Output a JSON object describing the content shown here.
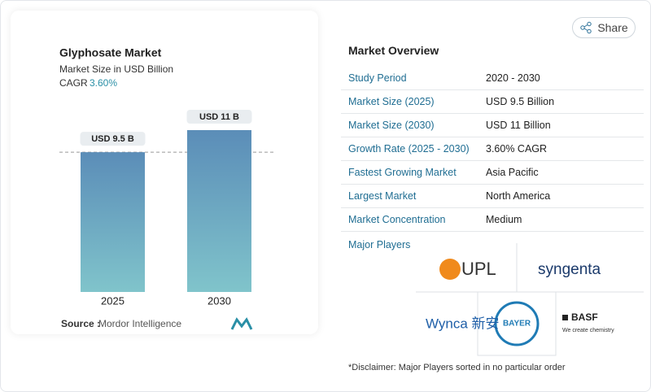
{
  "chart_data": {
    "type": "bar",
    "title": "Glyphosate Market",
    "subtitle": "Market Size in USD Billion",
    "cagr_label": "CAGR",
    "cagr": "3.60%",
    "categories": [
      "2025",
      "2030"
    ],
    "values": [
      9.5,
      11
    ],
    "value_labels": [
      "USD 9.5 B",
      "USD 11 B"
    ],
    "source_label": "Source :",
    "source": "Mordor Intelligence"
  },
  "share": "Share",
  "overview": {
    "title": "Market Overview",
    "rows": [
      [
        "Study Period",
        "2020 - 2030"
      ],
      [
        "Market Size (2025)",
        "USD 9.5 Billion"
      ],
      [
        "Market Size (2030)",
        "USD 11 Billion"
      ],
      [
        "Growth Rate (2025 - 2030)",
        "3.60% CAGR"
      ],
      [
        "Fastest Growing Market",
        "Asia Pacific"
      ],
      [
        "Largest Market",
        "North America"
      ],
      [
        "Market Concentration",
        "Medium"
      ]
    ],
    "players_title": "Major Players",
    "players": [
      "UPL",
      "syngenta",
      "BAYER",
      "Wynca 新安",
      "BASF",
      "We create chemistry"
    ],
    "disclaimer": "*Disclaimer: Major Players sorted in no particular order"
  }
}
